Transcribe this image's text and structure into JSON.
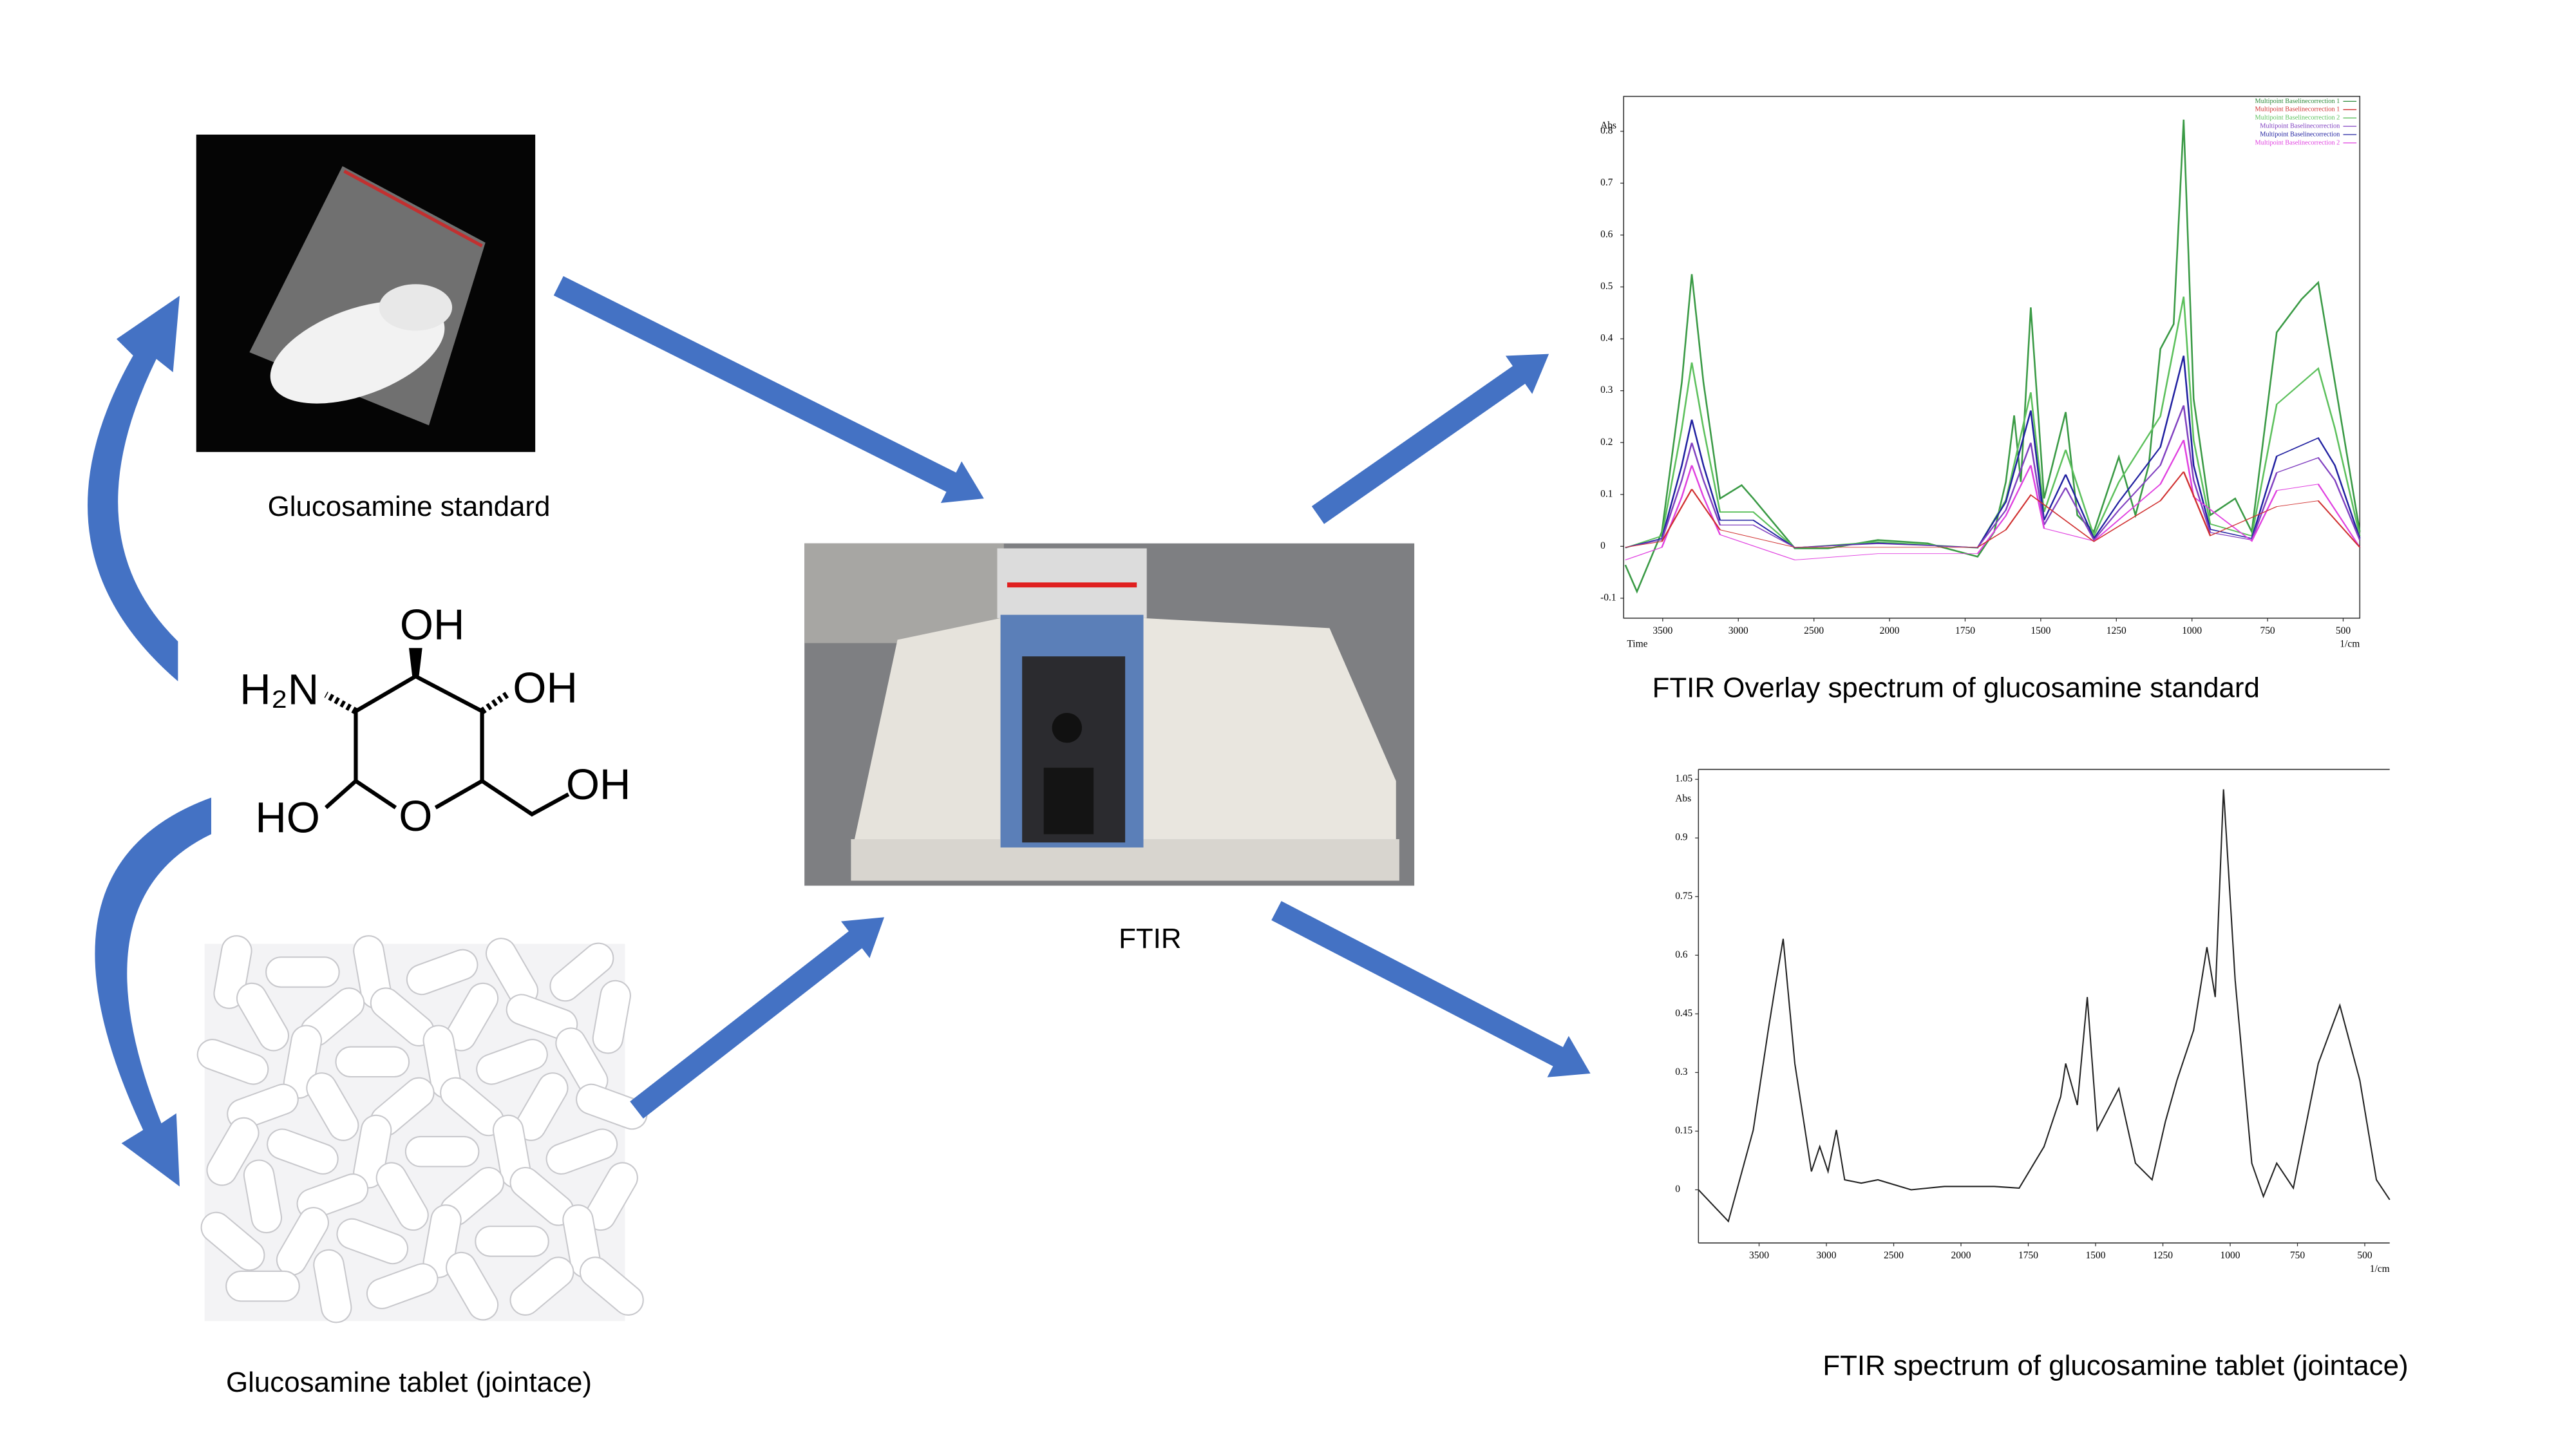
{
  "diagram": {
    "nodes": [
      {
        "label": "Glucosamine standard"
      },
      {
        "label": "Glucosamine tablet (jointace)"
      },
      {
        "label": "FTIR"
      },
      {
        "label": "FTIR Overlay spectrum of glucosamine standard"
      },
      {
        "label": "FTIR spectrum of glucosamine tablet (jointace)"
      }
    ],
    "structure": {
      "atoms": [
        "OH",
        "H₂N",
        "OH",
        "HO",
        "O",
        "OH"
      ]
    },
    "overlay_spectrum": {
      "y_label": "Abs",
      "x_label": "1/cm",
      "corner_label": "Time",
      "legend": [
        {
          "name": "Multipoint Baselinecorrection 1",
          "color": "#2e8b3a"
        },
        {
          "name": "Multipoint Baselinecorrection 1",
          "color": "#d03030"
        },
        {
          "name": "Multipoint Baselinecorrection 2",
          "color": "#5cc05c"
        },
        {
          "name": "Multipoint Baselinecorrection",
          "color": "#8040c0"
        },
        {
          "name": "Multipoint Baselinecorrection",
          "color": "#2020a0"
        },
        {
          "name": "Multipoint Baselinecorrection 2",
          "color": "#e040e0"
        }
      ],
      "xticks": [
        3500,
        3000,
        2500,
        2000,
        1750,
        1500,
        1250,
        1000,
        750,
        500
      ],
      "yticks": [
        -0.1,
        0,
        0.1,
        0.2,
        0.3,
        0.4,
        0.5,
        0.6,
        0.7,
        0.8
      ]
    },
    "tablet_spectrum": {
      "y_label": "Abs",
      "x_label": "1/cm",
      "xticks": [
        3500,
        3000,
        2500,
        2000,
        1750,
        1500,
        1250,
        1000,
        750,
        500
      ],
      "yticks": [
        0,
        0.15,
        0.3,
        0.45,
        0.6,
        0.75,
        0.9,
        1.05
      ]
    }
  }
}
